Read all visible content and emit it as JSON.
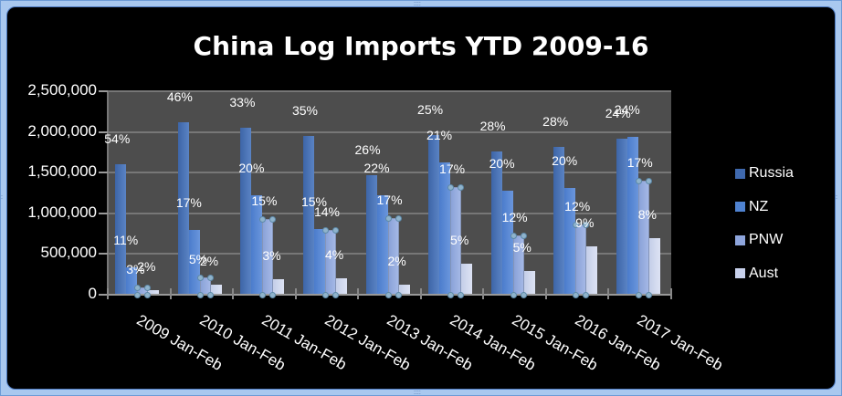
{
  "chart_data": {
    "type": "bar",
    "title": "China Log Imports YTD 2009-16",
    "xlabel": "",
    "ylabel": "",
    "ylim": [
      0,
      2500000
    ],
    "yticks": [
      "0",
      "500,000",
      "1,000,000",
      "1,500,000",
      "2,000,000",
      "2,500,000"
    ],
    "grid": true,
    "legend_position": "right",
    "categories": [
      "2009 Jan-Feb",
      "2010 Jan-Feb",
      "2011 Jan-Feb",
      "2012 Jan-Feb",
      "2013 Jan-Feb",
      "2014 Jan-Feb",
      "2015 Jan-Feb",
      "2016 Jan-Feb",
      "2017 Jan-Feb"
    ],
    "series": [
      {
        "name": "Russia",
        "color": "#4a74b8",
        "values": [
          1600000,
          2120000,
          2050000,
          1950000,
          1470000,
          1960000,
          1760000,
          1815000,
          1915000
        ],
        "labels": [
          "54%",
          "46%",
          "33%",
          "35%",
          "26%",
          "25%",
          "28%",
          "28%",
          "24%"
        ]
      },
      {
        "name": "NZ",
        "color": "#5a88d4",
        "values": [
          335000,
          795000,
          1220000,
          805000,
          1220000,
          1625000,
          1280000,
          1310000,
          1940000
        ],
        "labels": [
          "11%",
          "17%",
          "20%",
          "15%",
          "22%",
          "21%",
          "20%",
          "20%",
          "24%"
        ]
      },
      {
        "name": "PNW",
        "color": "#97acdf",
        "values": [
          90000,
          215000,
          930000,
          795000,
          940000,
          1320000,
          730000,
          865000,
          1400000
        ],
        "labels": [
          "3%",
          "5%",
          "15%",
          "14%",
          "17%",
          "17%",
          "12%",
          "12%",
          "17%"
        ]
      },
      {
        "name": "Aust",
        "color": "#d0d8ee",
        "values": [
          55000,
          120000,
          190000,
          200000,
          125000,
          380000,
          290000,
          595000,
          695000
        ],
        "labels": [
          "2%",
          "2%",
          "3%",
          "4%",
          "2%",
          "5%",
          "5%",
          "9%",
          "8%"
        ]
      }
    ]
  },
  "legend": [
    {
      "label": "Russia",
      "color": "#3f69ae"
    },
    {
      "label": "NZ",
      "color": "#4f82d0"
    },
    {
      "label": "PNW",
      "color": "#8ea5dc"
    },
    {
      "label": "Aust",
      "color": "#c8d1ec"
    }
  ]
}
